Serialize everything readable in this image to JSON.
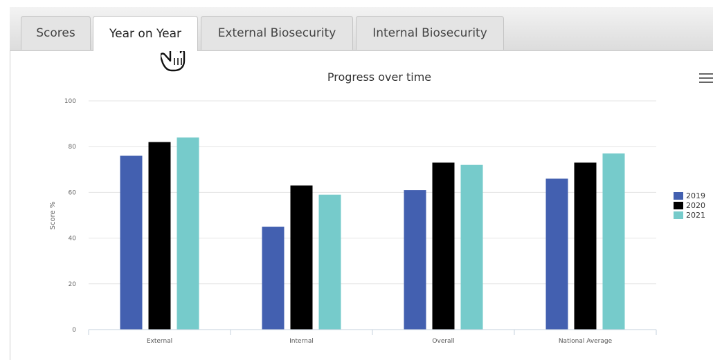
{
  "tabs": [
    {
      "label": "Scores",
      "active": false
    },
    {
      "label": "Year on Year",
      "active": true
    },
    {
      "label": "External Biosecurity",
      "active": false
    },
    {
      "label": "Internal Biosecurity",
      "active": false
    }
  ],
  "menu_icon": "hamburger-menu-icon",
  "cursor_icon": "hand-pointer-icon",
  "chart_data": {
    "type": "bar",
    "title": "Progress over time",
    "xlabel": "",
    "ylabel": "Score %",
    "categories": [
      "External",
      "Internal",
      "Overall",
      "National Average"
    ],
    "series": [
      {
        "name": "2019",
        "color": "#4360b0",
        "values": [
          76,
          45,
          61,
          66
        ]
      },
      {
        "name": "2020",
        "color": "#000000",
        "values": [
          82,
          63,
          73,
          73
        ]
      },
      {
        "name": "2021",
        "color": "#76cbcb",
        "values": [
          84,
          59,
          72,
          77
        ]
      }
    ],
    "ylim": [
      0,
      100
    ],
    "yticks": [
      "0",
      "20",
      "40",
      "60",
      "80",
      "100"
    ],
    "grid": true,
    "legend_position": "right"
  }
}
